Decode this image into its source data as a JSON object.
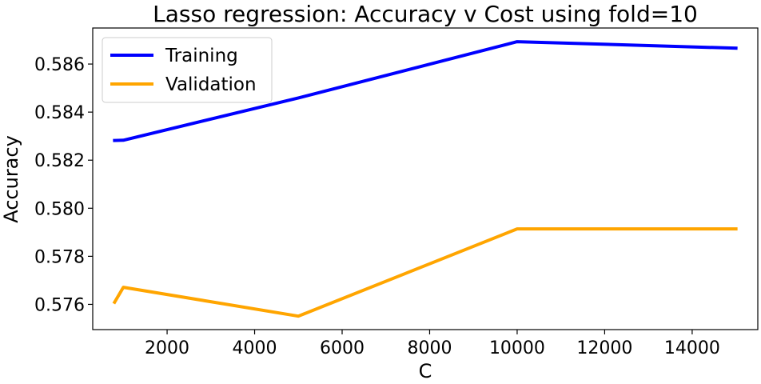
{
  "chart_data": {
    "type": "line",
    "title": "Lasso regression: Accuracy v Cost using fold=10",
    "xlabel": "C",
    "ylabel": "Accuracy",
    "xlim": [
      300,
      15500
    ],
    "ylim": [
      0.57495,
      0.5875
    ],
    "xticks": [
      2000,
      4000,
      6000,
      8000,
      10000,
      12000,
      14000
    ],
    "yticks": [
      0.576,
      0.578,
      0.58,
      0.582,
      0.584,
      0.586
    ],
    "grid": false,
    "legend_position": "top-left",
    "series": [
      {
        "name": "Training",
        "color": "#0000ff",
        "x": [
          800,
          1000,
          5000,
          10000,
          15000
        ],
        "y": [
          0.58282,
          0.58283,
          0.58459,
          0.58693,
          0.58666
        ]
      },
      {
        "name": "Validation",
        "color": "#ffa500",
        "x": [
          800,
          1000,
          5000,
          10000,
          15000
        ],
        "y": [
          0.57609,
          0.57671,
          0.57551,
          0.57914,
          0.57914
        ]
      }
    ]
  }
}
